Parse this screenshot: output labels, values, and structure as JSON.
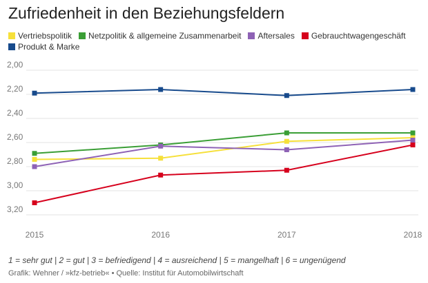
{
  "chart_data": {
    "type": "line",
    "title": "Zufriedenheit in den Beziehungsfeldern",
    "x": [
      "2015",
      "2016",
      "2017",
      "2018"
    ],
    "ylim": [
      2.0,
      3.2
    ],
    "y_inverted": true,
    "yticks": [
      "2,00",
      "2,20",
      "2,40",
      "2,60",
      "2,80",
      "3,00",
      "3,20"
    ],
    "grid": true,
    "legend_position": "top",
    "series": [
      {
        "name": "Vertriebspolitik",
        "color": "#f6e03a",
        "values": [
          2.74,
          2.73,
          2.59,
          2.56
        ]
      },
      {
        "name": "Netzpolitik & allgemeine Zusammenarbeit",
        "color": "#3a9e35",
        "values": [
          2.69,
          2.62,
          2.52,
          2.52
        ]
      },
      {
        "name": "Aftersales",
        "color": "#8e62b5",
        "values": [
          2.8,
          2.63,
          2.66,
          2.58
        ]
      },
      {
        "name": "Gebrauchtwagengeschäft",
        "color": "#d6001c",
        "values": [
          3.1,
          2.87,
          2.83,
          2.62
        ]
      },
      {
        "name": "Produkt & Marke",
        "color": "#174a8c",
        "values": [
          2.19,
          2.16,
          2.21,
          2.16
        ]
      }
    ]
  },
  "note": "1 = sehr gut | 2 = gut | 3 = befriedigend | 4 = ausreichend | 5 = mangelhaft | 6 = ungenügend",
  "source": "Grafik: Wehner / »kfz-betrieb« • Quelle: Institut für Automobilwirtschaft"
}
